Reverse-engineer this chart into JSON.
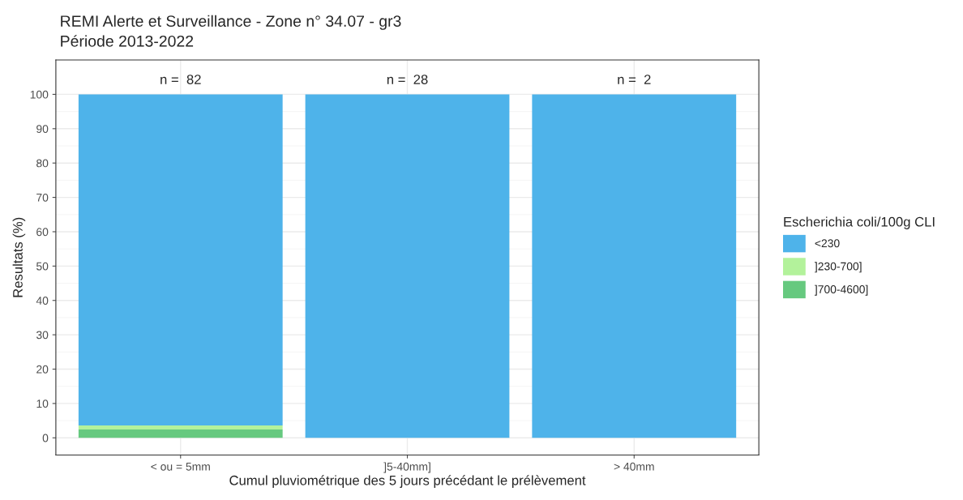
{
  "chart_data": {
    "type": "bar",
    "title": "REMI Alerte et Surveillance - Zone n° 34.07 - gr3",
    "subtitle": "Période 2013-2022",
    "xlabel": "Cumul pluviométrique des 5 jours précédant le prélèvement",
    "ylabel": "Resultats (%)",
    "legend_title": "Escherichia coli/100g CLI",
    "categories": [
      "< ou = 5mm",
      "]5-40mm]",
      "> 40mm"
    ],
    "stacked": true,
    "series": [
      {
        "name": "]700-4600]",
        "color": "#66c97f",
        "values": [
          2.4,
          0,
          0
        ]
      },
      {
        "name": "]230-700]",
        "color": "#b3f29b",
        "values": [
          1.2,
          0,
          0
        ]
      },
      {
        "name": "<230",
        "color": "#4eb3ea",
        "values": [
          96.4,
          100,
          100
        ]
      }
    ],
    "ylim": [
      -5,
      110
    ],
    "yticks": [
      0,
      10,
      20,
      30,
      40,
      50,
      60,
      70,
      80,
      90,
      100
    ],
    "annotations": [
      "n =  82",
      "n =  28",
      "n =  2"
    ],
    "grid": true,
    "legend": "right"
  }
}
